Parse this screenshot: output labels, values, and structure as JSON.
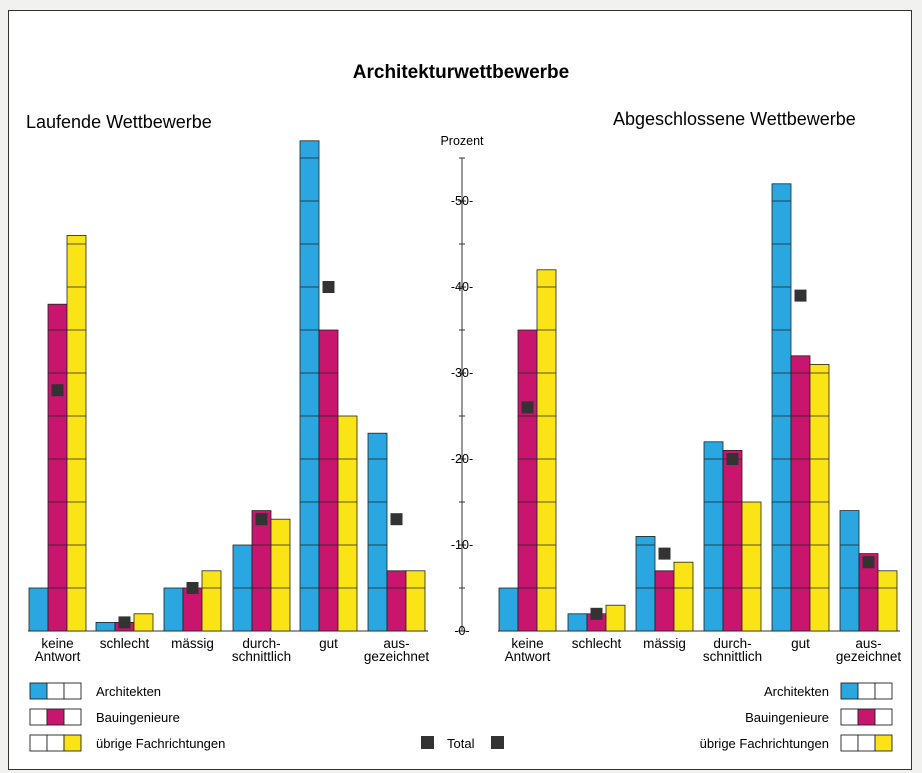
{
  "chart_data": {
    "type": "bar",
    "title": "Architekturwettbewerbe",
    "axis_label": "Prozent",
    "yticks": [
      "50",
      "40",
      "30",
      "20",
      "10",
      "0"
    ],
    "ylim": [
      0,
      55
    ],
    "grid": false,
    "series_names": [
      "Architekten",
      "Bauingenieure",
      "übrige Fachrichtungen"
    ],
    "total_label": "Total",
    "colors": {
      "Architekten": "#2aa7e0",
      "Bauingenieure": "#c8156e",
      "übrige Fachrichtungen": "#fbe416",
      "Total": "#333333"
    },
    "categories": [
      {
        "label": [
          "keine",
          "Antwort"
        ]
      },
      {
        "label": [
          "schlecht"
        ]
      },
      {
        "label": [
          "mässig"
        ]
      },
      {
        "label": [
          "durch-",
          "schnittlich"
        ]
      },
      {
        "label": [
          "gut"
        ]
      },
      {
        "label": [
          "aus-",
          "gezeichnet"
        ]
      }
    ],
    "panels": [
      {
        "title": "Laufende Wettbewerbe",
        "series": [
          {
            "name": "Architekten",
            "values": [
              5,
              1,
              5,
              10,
              57,
              23
            ]
          },
          {
            "name": "Bauingenieure",
            "values": [
              38,
              1,
              5,
              14,
              35,
              7
            ]
          },
          {
            "name": "übrige Fachrichtungen",
            "values": [
              46,
              2,
              7,
              13,
              25,
              7
            ]
          }
        ],
        "total": [
          28,
          1,
          5,
          13,
          40,
          13
        ]
      },
      {
        "title": "Abgeschlossene Wettbewerbe",
        "series": [
          {
            "name": "Architekten",
            "values": [
              5,
              2,
              11,
              22,
              52,
              14
            ]
          },
          {
            "name": "Bauingenieure",
            "values": [
              35,
              2,
              7,
              21,
              32,
              9
            ]
          },
          {
            "name": "übrige Fachrichtungen",
            "values": [
              42,
              3,
              8,
              15,
              31,
              7
            ]
          }
        ],
        "total": [
          26,
          2,
          9,
          20,
          39,
          8
        ]
      }
    ]
  }
}
